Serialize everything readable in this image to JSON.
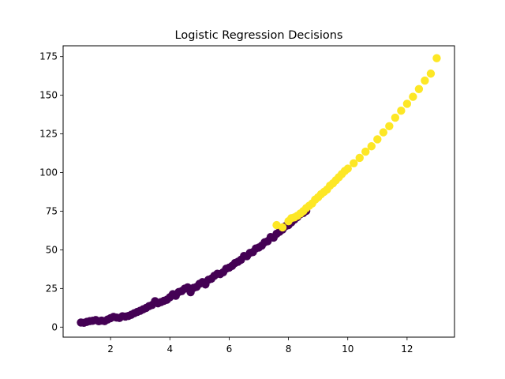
{
  "chart_data": {
    "type": "scatter",
    "title": "Logistic Regression Decisions",
    "xlabel": "",
    "ylabel": "",
    "xlim": [
      0.4,
      13.6
    ],
    "ylim": [
      -6.5,
      182
    ],
    "x_ticks": [
      2,
      4,
      6,
      8,
      10,
      12
    ],
    "y_ticks": [
      0,
      25,
      50,
      75,
      100,
      125,
      150,
      175
    ],
    "grid": false,
    "legend": "none",
    "relationship": "y = x^2",
    "classes": [
      {
        "label": 0,
        "color": "#440154",
        "x_range": [
          1.0,
          8.6
        ]
      },
      {
        "label": 1,
        "color": "#fde725",
        "x_range": [
          7.6,
          13.0
        ]
      }
    ],
    "series": [
      {
        "color": "#440154",
        "x": [
          1.0,
          1.1,
          1.2,
          1.3,
          1.4,
          1.5,
          1.6,
          1.7,
          1.8,
          1.9,
          2.0,
          2.1,
          2.2,
          2.3,
          2.4,
          2.5,
          2.6,
          2.7,
          2.8,
          2.9,
          3.0,
          3.1,
          3.2,
          3.3,
          3.4,
          3.5,
          3.6,
          3.7,
          3.8,
          3.9,
          4.0,
          4.1,
          4.2,
          4.3,
          4.4,
          4.5,
          4.6,
          4.7,
          4.8,
          4.9,
          5.0,
          5.1,
          5.2,
          5.3,
          5.4,
          5.5,
          5.6,
          5.7,
          5.8,
          5.9,
          6.0,
          6.1,
          6.2,
          6.3,
          6.4,
          6.5,
          6.6,
          6.7,
          6.8,
          6.9,
          7.0,
          7.1,
          7.2,
          7.3,
          7.4,
          7.5,
          7.6,
          7.7,
          7.8,
          7.9,
          8.0,
          8.1,
          8.2,
          8.3,
          8.4,
          8.5,
          8.6
        ],
        "y": [
          3.0,
          2.8,
          3.4,
          3.9,
          4.1,
          4.6,
          3.8,
          4.2,
          3.9,
          4.9,
          5.8,
          6.6,
          6.2,
          5.9,
          7.0,
          6.8,
          7.2,
          8.0,
          9.0,
          9.8,
          10.6,
          11.5,
          12.4,
          13.6,
          14.3,
          16.8,
          15.4,
          16.2,
          17.0,
          17.7,
          19.3,
          21.3,
          20.3,
          22.7,
          23.3,
          24.9,
          25.7,
          22.6,
          25.4,
          26.0,
          28.0,
          29.1,
          27.6,
          30.6,
          31.3,
          33.2,
          34.5,
          34.3,
          35.5,
          37.8,
          38.5,
          39.6,
          41.5,
          42.3,
          43.6,
          46.0,
          45.9,
          48.0,
          48.5,
          50.9,
          51.5,
          52.7,
          54.9,
          55.6,
          58.3,
          57.9,
          60.4,
          61.7,
          63.1,
          65.3,
          66.0,
          67.8,
          69.6,
          71.2,
          73.0,
          73.8,
          75.2
        ]
      },
      {
        "color": "#fde725",
        "x": [
          7.6,
          7.8,
          8.0,
          8.1,
          8.2,
          8.3,
          8.4,
          8.5,
          8.6,
          8.7,
          8.8,
          8.9,
          9.0,
          9.1,
          9.2,
          9.3,
          9.4,
          9.5,
          9.6,
          9.7,
          9.8,
          9.9,
          10.0,
          10.2,
          10.4,
          10.6,
          10.8,
          11.0,
          11.2,
          11.4,
          11.6,
          11.8,
          12.0,
          12.2,
          12.4,
          12.6,
          12.8,
          13.0
        ],
        "y": [
          66.0,
          64.5,
          68.5,
          70.5,
          71.0,
          72.0,
          73.5,
          75.0,
          77.0,
          78.5,
          80.0,
          82.5,
          84.0,
          86.0,
          87.5,
          89.0,
          91.5,
          93.0,
          95.0,
          97.0,
          99.0,
          101.0,
          102.5,
          106.0,
          109.5,
          113.5,
          117.0,
          121.5,
          126.0,
          130.0,
          135.5,
          140.0,
          144.5,
          149.0,
          154.0,
          159.5,
          164.0,
          174.0
        ]
      }
    ]
  }
}
